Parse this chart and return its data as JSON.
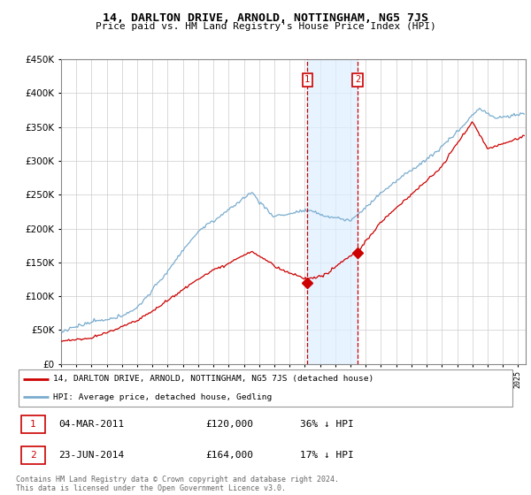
{
  "title": "14, DARLTON DRIVE, ARNOLD, NOTTINGHAM, NG5 7JS",
  "subtitle": "Price paid vs. HM Land Registry's House Price Index (HPI)",
  "ylim": [
    0,
    450000
  ],
  "xlim_start": 1995.0,
  "xlim_end": 2025.5,
  "transaction1": {
    "date_x": 2011.17,
    "price": 120000,
    "label": "1"
  },
  "transaction2": {
    "date_x": 2014.47,
    "price": 164000,
    "label": "2"
  },
  "legend_line1": "14, DARLTON DRIVE, ARNOLD, NOTTINGHAM, NG5 7JS (detached house)",
  "legend_line2": "HPI: Average price, detached house, Gedling",
  "footnote1": "Contains HM Land Registry data © Crown copyright and database right 2024.",
  "footnote2": "This data is licensed under the Open Government Licence v3.0.",
  "table_row1": [
    "1",
    "04-MAR-2011",
    "£120,000",
    "36% ↓ HPI"
  ],
  "table_row2": [
    "2",
    "23-JUN-2014",
    "£164,000",
    "17% ↓ HPI"
  ],
  "line_color_red": "#cc0000",
  "line_color_blue": "#7aadcf",
  "bg_highlight": "#ddeeff",
  "vline_color": "#cc0000",
  "box_color": "#cc0000",
  "grid_color": "#cccccc",
  "background_color": "#ffffff"
}
